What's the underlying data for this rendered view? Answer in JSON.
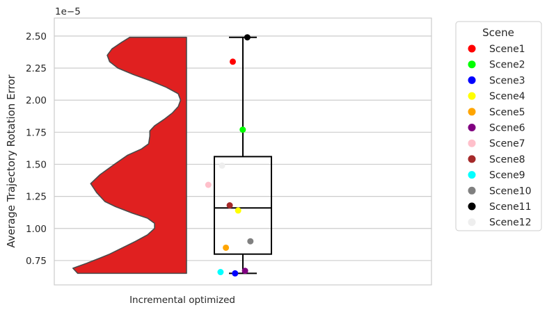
{
  "chart_data": {
    "type": "violin+box+strip",
    "offset_label": "1e−5",
    "ylabel": "Average Trajectory Rotation Error",
    "xlabel": "Incremental optimized",
    "yticks": [
      "0.75",
      "1.00",
      "1.25",
      "1.50",
      "1.75",
      "2.00",
      "2.25",
      "2.50"
    ],
    "ytick_values": [
      0.75,
      1.0,
      1.25,
      1.5,
      1.75,
      2.0,
      2.25,
      2.5
    ],
    "ylim": [
      0.56,
      2.64
    ],
    "grid": true,
    "violin": {
      "color": "#e02020",
      "edge": "#4a4a4a",
      "profile": [
        [
          0.65,
          0.92
        ],
        [
          0.69,
          0.96
        ],
        [
          0.73,
          0.84
        ],
        [
          0.77,
          0.73
        ],
        [
          0.8,
          0.65
        ],
        [
          0.85,
          0.54
        ],
        [
          0.9,
          0.43
        ],
        [
          0.95,
          0.33
        ],
        [
          1.0,
          0.27
        ],
        [
          1.04,
          0.27
        ],
        [
          1.08,
          0.33
        ],
        [
          1.12,
          0.46
        ],
        [
          1.17,
          0.6
        ],
        [
          1.21,
          0.69
        ],
        [
          1.28,
          0.76
        ],
        [
          1.35,
          0.81
        ],
        [
          1.42,
          0.73
        ],
        [
          1.5,
          0.61
        ],
        [
          1.57,
          0.5
        ],
        [
          1.62,
          0.38
        ],
        [
          1.66,
          0.32
        ],
        [
          1.72,
          0.31
        ],
        [
          1.76,
          0.31
        ],
        [
          1.8,
          0.27
        ],
        [
          1.85,
          0.19
        ],
        [
          1.9,
          0.12
        ],
        [
          1.95,
          0.07
        ],
        [
          2.0,
          0.05
        ],
        [
          2.05,
          0.07
        ],
        [
          2.1,
          0.17
        ],
        [
          2.15,
          0.3
        ],
        [
          2.2,
          0.45
        ],
        [
          2.25,
          0.58
        ],
        [
          2.3,
          0.65
        ],
        [
          2.35,
          0.67
        ],
        [
          2.4,
          0.63
        ],
        [
          2.45,
          0.55
        ],
        [
          2.49,
          0.48
        ]
      ]
    },
    "box": {
      "whisker_low": 0.65,
      "q1": 0.8,
      "median": 1.16,
      "q3": 1.56,
      "whisker_high": 2.49
    },
    "points": [
      {
        "scene": "Scene1",
        "y": 2.3,
        "jitter": 0.35,
        "color": "#ff0000"
      },
      {
        "scene": "Scene2",
        "y": 1.77,
        "jitter": 0.48,
        "color": "#00ff00"
      },
      {
        "scene": "Scene3",
        "y": 0.65,
        "jitter": 0.38,
        "color": "#0000ff"
      },
      {
        "scene": "Scene4",
        "y": 1.14,
        "jitter": 0.42,
        "color": "#ffff00"
      },
      {
        "scene": "Scene5",
        "y": 0.85,
        "jitter": 0.26,
        "color": "#ffa500"
      },
      {
        "scene": "Scene6",
        "y": 0.67,
        "jitter": 0.51,
        "color": "#800080"
      },
      {
        "scene": "Scene7",
        "y": 1.34,
        "jitter": 0.03,
        "color": "#ffc0cb"
      },
      {
        "scene": "Scene8",
        "y": 1.18,
        "jitter": 0.31,
        "color": "#a52a2a"
      },
      {
        "scene": "Scene9",
        "y": 0.66,
        "jitter": 0.19,
        "color": "#00ffff"
      },
      {
        "scene": "Scene10",
        "y": 0.9,
        "jitter": 0.58,
        "color": "#808080"
      },
      {
        "scene": "Scene11",
        "y": 2.49,
        "jitter": 0.54,
        "color": "#000000"
      },
      {
        "scene": "Scene12",
        "y": 1.49,
        "jitter": 0.21,
        "color": "#eeeeee"
      }
    ],
    "legend": {
      "title": "Scene",
      "placement": "outside-right",
      "entries": [
        {
          "label": "Scene1",
          "color": "#ff0000"
        },
        {
          "label": "Scene2",
          "color": "#00ff00"
        },
        {
          "label": "Scene3",
          "color": "#0000ff"
        },
        {
          "label": "Scene4",
          "color": "#ffff00"
        },
        {
          "label": "Scene5",
          "color": "#ffa500"
        },
        {
          "label": "Scene6",
          "color": "#800080"
        },
        {
          "label": "Scene7",
          "color": "#ffc0cb"
        },
        {
          "label": "Scene8",
          "color": "#a52a2a"
        },
        {
          "label": "Scene9",
          "color": "#00ffff"
        },
        {
          "label": "Scene10",
          "color": "#808080"
        },
        {
          "label": "Scene11",
          "color": "#000000"
        },
        {
          "label": "Scene12",
          "color": "#eeeeee"
        }
      ]
    }
  }
}
